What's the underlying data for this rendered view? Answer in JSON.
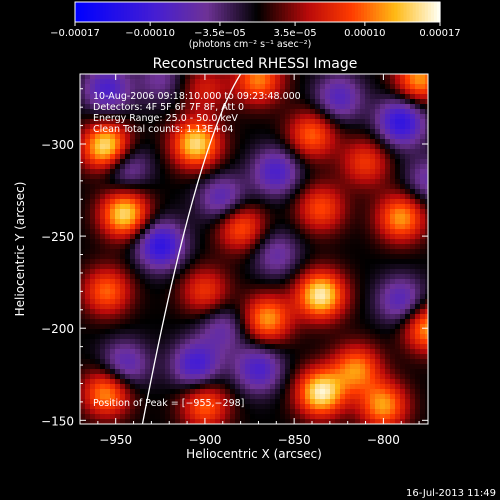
{
  "chart_data": {
    "type": "heatmap",
    "title": "Reconstructed RHESSI Image",
    "xlabel": "Heliocentric X (arcsec)",
    "ylabel": "Heliocentric Y (arcsec)",
    "xlim": [
      -970,
      -775
    ],
    "ylim": [
      -338,
      -148
    ],
    "x_ticks": [
      -950,
      -900,
      -850,
      -800
    ],
    "x_tick_labels": [
      "−950",
      "−900",
      "−850",
      "−800"
    ],
    "y_ticks": [
      -150,
      -200,
      -250,
      -300
    ],
    "y_tick_labels": [
      "−150",
      "−200",
      "−250",
      "−300"
    ],
    "annotations": [
      "10-Aug-2006 09:18:10.000 to 09:23:48.000",
      "Detectors: 4F 5F 6F 7F 8F, Att 0",
      "Energy Range: 25.0 - 50.0 keV",
      "Clean     Total counts: 1.13E+04"
    ],
    "peak_label": "Position of Peak = [−955,−298]",
    "peak_position": [
      -955,
      -298
    ],
    "limb_curve": [
      [
        -935,
        -148
      ],
      [
        -905,
        -300
      ],
      [
        -880,
        -338
      ]
    ],
    "colorbar": {
      "tick_labels": [
        "−0.00017",
        "−0.00010",
        "−3.5e−05",
        "3.5e−05",
        "0.00010",
        "0.00017"
      ],
      "unit_label": "(photons cm⁻² s⁻¹ asec⁻²)",
      "range": [
        -0.00017,
        0.00017
      ]
    },
    "blobs": [
      {
        "x": -955,
        "y": -165,
        "v": 0.00012
      },
      {
        "x": -900,
        "y": -158,
        "v": 0.0001
      },
      {
        "x": -835,
        "y": -165,
        "v": 0.00016
      },
      {
        "x": -800,
        "y": -158,
        "v": 0.00012
      },
      {
        "x": -815,
        "y": -178,
        "v": 0.00011
      },
      {
        "x": -865,
        "y": -205,
        "v": 0.00012
      },
      {
        "x": -835,
        "y": -218,
        "v": 0.00016
      },
      {
        "x": -775,
        "y": -200,
        "v": 0.00012
      },
      {
        "x": -955,
        "y": -220,
        "v": 0.0001
      },
      {
        "x": -900,
        "y": -220,
        "v": 8e-05
      },
      {
        "x": -945,
        "y": -262,
        "v": 0.00015
      },
      {
        "x": -880,
        "y": -255,
        "v": 0.0001
      },
      {
        "x": -835,
        "y": -265,
        "v": 9e-05
      },
      {
        "x": -790,
        "y": -260,
        "v": 0.00012
      },
      {
        "x": -840,
        "y": -305,
        "v": 0.0001
      },
      {
        "x": -810,
        "y": -290,
        "v": 8e-05
      },
      {
        "x": -955,
        "y": -298,
        "v": 0.00017
      },
      {
        "x": -905,
        "y": -300,
        "v": 0.00015
      },
      {
        "x": -900,
        "y": -330,
        "v": 6e-05
      },
      {
        "x": -870,
        "y": -335,
        "v": 0.00011
      },
      {
        "x": -780,
        "y": -335,
        "v": 0.00012
      },
      {
        "x": -945,
        "y": -180,
        "v": -8e-05
      },
      {
        "x": -905,
        "y": -180,
        "v": -0.0001
      },
      {
        "x": -870,
        "y": -178,
        "v": -9e-05
      },
      {
        "x": -890,
        "y": -200,
        "v": -6e-05
      },
      {
        "x": -790,
        "y": -215,
        "v": -8e-05
      },
      {
        "x": -925,
        "y": -245,
        "v": -0.00012
      },
      {
        "x": -860,
        "y": -240,
        "v": -6e-05
      },
      {
        "x": -945,
        "y": -288,
        "v": -8e-05
      },
      {
        "x": -890,
        "y": -270,
        "v": -8e-05
      },
      {
        "x": -860,
        "y": -285,
        "v": -9e-05
      },
      {
        "x": -790,
        "y": -312,
        "v": -0.00012
      },
      {
        "x": -825,
        "y": -325,
        "v": -8e-05
      },
      {
        "x": -955,
        "y": -330,
        "v": -9e-05
      },
      {
        "x": -925,
        "y": -335,
        "v": -5e-05
      },
      {
        "x": -775,
        "y": -280,
        "v": -6e-05
      }
    ]
  },
  "footer": {
    "timestamp": "16-Jul-2013 11:49"
  }
}
